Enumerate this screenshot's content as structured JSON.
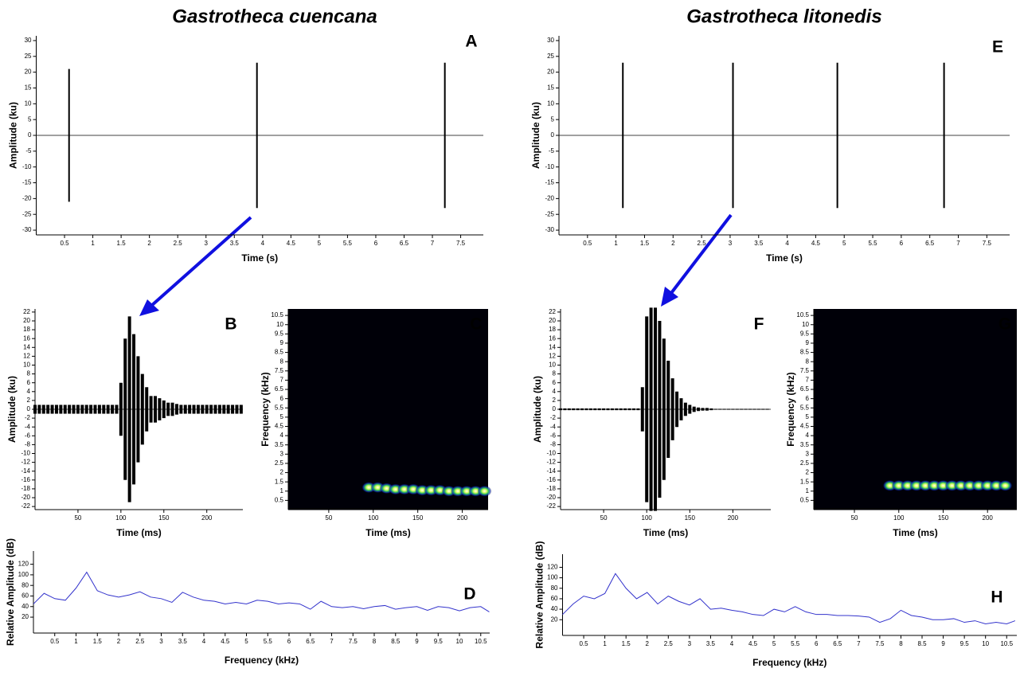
{
  "titles": [
    "Gastrotheca cuencana",
    "Gastrotheca litonedis"
  ],
  "chart_data": [
    {
      "type": "waveform",
      "label": "A",
      "xlabel": "Time (s)",
      "ylabel": "Amplitude (ku)",
      "color": "#000000",
      "x": [
        0.58,
        3.9,
        7.22
      ],
      "values": [
        21,
        23,
        23
      ],
      "xlim": [
        0,
        7.9
      ],
      "ylim": [
        -31.5,
        31.5
      ],
      "xticks": [
        0.5,
        1,
        1.5,
        2,
        2.5,
        3,
        3.5,
        4,
        4.5,
        5,
        5.5,
        6,
        6.5,
        7,
        7.5
      ],
      "yticks": [
        -30,
        -25,
        -20,
        -15,
        -10,
        -5,
        0,
        5,
        10,
        15,
        20,
        25,
        30
      ]
    },
    {
      "type": "waveform",
      "label": "B",
      "xlabel": "Time (ms)",
      "ylabel": "Amplitude (ku)",
      "color": "#000000",
      "x": [
        0,
        5,
        10,
        15,
        20,
        25,
        30,
        35,
        40,
        45,
        50,
        55,
        60,
        65,
        70,
        75,
        80,
        85,
        90,
        95,
        100,
        105,
        110,
        115,
        120,
        125,
        130,
        135,
        140,
        145,
        150,
        155,
        160,
        165,
        170,
        175,
        180,
        185,
        190,
        195,
        200,
        205,
        210,
        215,
        220,
        225,
        230,
        235,
        240
      ],
      "values": [
        1,
        1,
        1,
        1,
        1,
        1,
        1,
        1,
        1,
        1,
        1,
        1,
        1,
        1,
        1,
        1,
        1,
        1,
        1,
        1,
        6,
        16,
        21,
        17,
        12,
        8,
        5,
        3,
        3,
        2.5,
        2,
        1.5,
        1.5,
        1.2,
        1,
        1,
        1,
        1,
        1,
        1,
        1,
        1,
        1,
        1,
        1,
        1,
        1,
        1,
        1
      ],
      "xlim": [
        0,
        242
      ],
      "ylim": [
        -22.7,
        22.7
      ],
      "xticks": [
        50,
        100,
        150,
        200
      ],
      "yticks": [
        -22,
        -20,
        -18,
        -16,
        -14,
        -12,
        -10,
        -8,
        -6,
        -4,
        -2,
        0,
        2,
        4,
        6,
        8,
        10,
        12,
        14,
        16,
        18,
        20,
        22
      ]
    },
    {
      "type": "spectrogram",
      "label": "C",
      "xlabel": "Time (ms)",
      "ylabel": "Frequency (kHz)",
      "x": [
        95,
        105,
        115,
        125,
        135,
        145,
        155,
        165,
        175,
        185,
        195,
        205,
        215,
        225
      ],
      "values": [
        1.2,
        1.2,
        1.15,
        1.1,
        1.1,
        1.1,
        1.05,
        1.05,
        1.05,
        1,
        1,
        1,
        1,
        1
      ],
      "xlim": [
        4.5,
        229
      ],
      "ylim": [
        0,
        10.85
      ],
      "xticks": [
        50,
        100,
        150,
        200
      ],
      "yticks": [
        0.5,
        1,
        1.5,
        2,
        2.5,
        3,
        3.5,
        4,
        4.5,
        5,
        5.5,
        6,
        6.5,
        7,
        7.5,
        8,
        8.5,
        9,
        9.5,
        10,
        10.5
      ]
    },
    {
      "type": "line",
      "label": "D",
      "xlabel": "Frequency (kHz)",
      "ylabel": "Relative Amplitude (dB)",
      "color": "#3333cc",
      "x": [
        0,
        0.25,
        0.5,
        0.75,
        1,
        1.25,
        1.5,
        1.75,
        2,
        2.25,
        2.5,
        2.75,
        3,
        3.25,
        3.5,
        3.75,
        4,
        4.25,
        4.5,
        4.75,
        5,
        5.25,
        5.5,
        5.75,
        6,
        6.25,
        6.5,
        6.75,
        7,
        7.25,
        7.5,
        7.75,
        8,
        8.25,
        8.5,
        8.75,
        9,
        9.25,
        9.5,
        9.75,
        10,
        10.25,
        10.5,
        10.7
      ],
      "values": [
        45,
        65,
        55,
        52,
        75,
        105,
        70,
        62,
        58,
        62,
        68,
        58,
        55,
        48,
        67,
        58,
        52,
        50,
        45,
        48,
        45,
        52,
        50,
        45,
        47,
        45,
        35,
        50,
        40,
        38,
        40,
        36,
        40,
        42,
        35,
        38,
        40,
        33,
        40,
        38,
        32,
        38,
        40,
        30
      ],
      "xlim": [
        0,
        10.71
      ],
      "ylim": [
        -10,
        145
      ],
      "xticks": [
        0.5,
        1,
        1.5,
        2,
        2.5,
        3,
        3.5,
        4,
        4.5,
        5,
        5.5,
        6,
        6.5,
        7,
        7.5,
        8,
        8.5,
        9,
        9.5,
        10,
        10.5
      ],
      "yticks": [
        20,
        40,
        60,
        80,
        100,
        120
      ]
    },
    {
      "type": "waveform",
      "label": "E",
      "xlabel": "Time (s)",
      "ylabel": "Amplitude (ku)",
      "color": "#000000",
      "x": [
        1.12,
        3.05,
        4.88,
        6.75
      ],
      "values": [
        23,
        23,
        23,
        23
      ],
      "xlim": [
        0,
        7.9
      ],
      "ylim": [
        -31.5,
        31.5
      ],
      "xticks": [
        0.5,
        1,
        1.5,
        2,
        2.5,
        3,
        3.5,
        4,
        4.5,
        5,
        5.5,
        6,
        6.5,
        7,
        7.5
      ],
      "yticks": [
        -30,
        -25,
        -20,
        -15,
        -10,
        -5,
        0,
        5,
        10,
        15,
        20,
        25,
        30
      ]
    },
    {
      "type": "waveform",
      "label": "F",
      "xlabel": "Time (ms)",
      "ylabel": "Amplitude (ku)",
      "color": "#000000",
      "x": [
        0,
        5,
        10,
        15,
        20,
        25,
        30,
        35,
        40,
        45,
        50,
        55,
        60,
        65,
        70,
        75,
        80,
        85,
        90,
        95,
        100,
        105,
        110,
        115,
        120,
        125,
        130,
        135,
        140,
        145,
        150,
        155,
        160,
        165,
        170,
        175,
        180,
        185,
        190,
        195,
        200,
        205,
        210,
        215,
        220,
        225,
        230,
        235,
        240
      ],
      "values": [
        0.2,
        0.2,
        0.2,
        0.2,
        0.2,
        0.2,
        0.2,
        0.2,
        0.2,
        0.2,
        0.2,
        0.2,
        0.2,
        0.2,
        0.2,
        0.2,
        0.2,
        0.2,
        0.2,
        5,
        21,
        23,
        23,
        20,
        16,
        11,
        7,
        4,
        2.5,
        1.5,
        1,
        0.6,
        0.4,
        0.3,
        0.3,
        0.2,
        0.1,
        0.1,
        0.1,
        0.1,
        0.1,
        0.1,
        0.1,
        0.1,
        0.1,
        0.1,
        0.1,
        0.1,
        0.1
      ],
      "xlim": [
        0,
        244
      ],
      "ylim": [
        -22.7,
        22.7
      ],
      "xticks": [
        50,
        100,
        150,
        200
      ],
      "yticks": [
        -22,
        -20,
        -18,
        -16,
        -14,
        -12,
        -10,
        -8,
        -6,
        -4,
        -2,
        0,
        2,
        4,
        6,
        8,
        10,
        12,
        14,
        16,
        18,
        20,
        22
      ]
    },
    {
      "type": "spectrogram",
      "label": "G",
      "xlabel": "Time (ms)",
      "ylabel": "Frequency (kHz)",
      "x": [
        90,
        100,
        110,
        120,
        130,
        140,
        150,
        160,
        170,
        180,
        190,
        200,
        210,
        220
      ],
      "values": [
        1.3,
        1.3,
        1.3,
        1.3,
        1.3,
        1.3,
        1.3,
        1.3,
        1.3,
        1.3,
        1.3,
        1.3,
        1.3,
        1.3
      ],
      "xlim": [
        4.2,
        233
      ],
      "ylim": [
        0,
        10.85
      ],
      "xticks": [
        50,
        100,
        150,
        200
      ],
      "yticks": [
        0.5,
        1,
        1.5,
        2,
        2.5,
        3,
        3.5,
        4,
        4.5,
        5,
        5.5,
        6,
        6.5,
        7,
        7.5,
        8,
        8.5,
        9,
        9.5,
        10,
        10.5
      ]
    },
    {
      "type": "line",
      "label": "H",
      "xlabel": "Frequency (kHz)",
      "ylabel": "Relative Amplitude (dB)",
      "color": "#3333cc",
      "x": [
        0,
        0.25,
        0.5,
        0.75,
        1,
        1.25,
        1.5,
        1.75,
        2,
        2.25,
        2.5,
        2.75,
        3,
        3.25,
        3.5,
        3.75,
        4,
        4.25,
        4.5,
        4.75,
        5,
        5.25,
        5.5,
        5.75,
        6,
        6.25,
        6.5,
        6.75,
        7,
        7.25,
        7.5,
        7.75,
        8,
        8.25,
        8.5,
        8.75,
        9,
        9.25,
        9.5,
        9.75,
        10,
        10.25,
        10.5,
        10.7
      ],
      "values": [
        30,
        50,
        65,
        60,
        70,
        108,
        80,
        60,
        72,
        50,
        65,
        55,
        48,
        60,
        40,
        42,
        38,
        35,
        30,
        28,
        40,
        35,
        45,
        35,
        30,
        30,
        28,
        28,
        27,
        25,
        15,
        22,
        38,
        28,
        25,
        20,
        20,
        22,
        15,
        18,
        12,
        15,
        12,
        18
      ],
      "xlim": [
        0,
        10.74
      ],
      "ylim": [
        -10,
        145
      ],
      "xticks": [
        0.5,
        1,
        1.5,
        2,
        2.5,
        3,
        3.5,
        4,
        4.5,
        5,
        5.5,
        6,
        6.5,
        7,
        7.5,
        8,
        8.5,
        9,
        9.5,
        10,
        10.5
      ],
      "yticks": [
        20,
        40,
        60,
        80,
        100,
        120
      ]
    }
  ]
}
